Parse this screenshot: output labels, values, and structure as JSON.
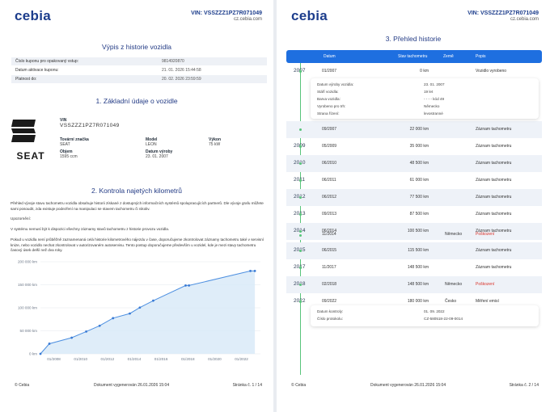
{
  "header": {
    "logo": "cebia",
    "vin_line": "VIN: VSSZZZ1PZ7R071049",
    "url": "cz.cebia.com"
  },
  "page1": {
    "title": "Výpis z historie vozidla",
    "coupon": [
      {
        "label": "Číslo kuponu pro opakovaný vstup:",
        "value": "9814920870"
      },
      {
        "label": "Datum aktivace kuponu:",
        "value": "21. 01. 2026 15:44:58"
      },
      {
        "label": "Platnost do:",
        "value": "20. 02. 2026 23:59:59"
      }
    ],
    "section1_title": "1. Základní údaje o vozidle",
    "brand_word": "SEAT",
    "vin_label": "VIN",
    "vin_value": "VSSZZZ1PZ7R071049",
    "specs": {
      "make_label": "Tovární značka",
      "make_value": "SEAT",
      "model_label": "Model",
      "model_value": "LEON",
      "power_label": "Výkon",
      "power_value": "75 kW",
      "volume_label": "Objem",
      "volume_value": "1595 ccm",
      "date_label": "Datum výroby",
      "date_value": "23. 01. 2007"
    },
    "section2_title": "2. Kontrola najetých kilometrů",
    "para1": "Přehled vývoje stavu tachometru vozidla obsahuje historii získané z dostupných informačních systémů spolupracujících partnerů. Dle vývoje grafu můžete sami posoudit, zda existuje podezření na manipulaci se stavem tachometru či nikoliv.",
    "para2": "Upozornění:",
    "para3": "V systému nemusí být k dispozici všechny záznamy stavů tachometru z historie provozu vozidla.",
    "para4": "Pokud u vozidla není průběžně zaznamenaná celá historie kilometrového nájezdu v čase, doporučujeme zkontrolovat záznamy tachometru také v servisní knize, nebo vozidlo nechat zkontrolovat v autorizovaném autoservisu. Tento postup doporučujeme především u vozidel, kde je mezi stavy tachometru časový úsek delší než dva roky.",
    "footer": {
      "left": "© Cebia",
      "center": "Dokument vygenerován 26.01.2026 15:04",
      "right": "Stránka č. 1 / 14"
    }
  },
  "chart_data": {
    "type": "area",
    "title": "",
    "xlabel": "",
    "ylabel": "",
    "y_ticks": [
      "200 000 km",
      "150 000 km",
      "100 000 km",
      "50 000 km",
      "0 km"
    ],
    "x_ticks": [
      "01/2008",
      "01/2010",
      "01/2012",
      "01/2014",
      "01/2016",
      "01/2018",
      "01/2020",
      "01/2022"
    ],
    "ylim": [
      0,
      200000
    ],
    "xlim": [
      "2007-01",
      "2023-06"
    ],
    "series": [
      {
        "points": [
          [
            "2007-01",
            0
          ],
          [
            "2007-09",
            22000
          ],
          [
            "2009-05",
            35000
          ],
          [
            "2010-06",
            48500
          ],
          [
            "2011-06",
            61000
          ],
          [
            "2012-06",
            77500
          ],
          [
            "2013-09",
            87500
          ],
          [
            "2014-06",
            100500
          ],
          [
            "2015-06",
            115500
          ],
          [
            "2017-11",
            148500
          ],
          [
            "2018-02",
            148500
          ],
          [
            "2022-09",
            180000
          ],
          [
            "2023-01",
            180000
          ]
        ]
      }
    ],
    "colors": {
      "line": "#4d8fe0",
      "fill": "#d7e8f8",
      "point": "#3a7bd5"
    }
  },
  "page2": {
    "title": "3. Přehled historie",
    "columns": [
      "Datum",
      "Stav tachometru",
      "Země",
      "Popis"
    ],
    "rows": [
      {
        "year": "2007",
        "date": "01/2007",
        "km": "0 km",
        "country": "",
        "desc": "Vozidlo vyrobeno"
      },
      {
        "year": "",
        "date": "09/2007",
        "km": "22 000 km",
        "country": "",
        "desc": "Záznam tachometru"
      },
      {
        "year": "2009",
        "date": "05/2009",
        "km": "35 000 km",
        "country": "",
        "desc": "Záznam tachometru"
      },
      {
        "year": "2010",
        "date": "06/2010",
        "km": "48 500 km",
        "country": "",
        "desc": "Záznam tachometru"
      },
      {
        "year": "2011",
        "date": "06/2011",
        "km": "61 000 km",
        "country": "",
        "desc": "Záznam tachometru"
      },
      {
        "year": "2012",
        "date": "06/2012",
        "km": "77 500 km",
        "country": "",
        "desc": "Záznam tachometru"
      },
      {
        "year": "2013",
        "date": "09/2013",
        "km": "87 500 km",
        "country": "",
        "desc": "Záznam tachometru"
      },
      {
        "year": "2014",
        "date": "06/2014",
        "km": "100 500 km",
        "country": "",
        "desc": "Záznam tachometru"
      },
      {
        "year": "",
        "date": "11/2014",
        "km": "",
        "country": "Německo",
        "desc": "Poškození"
      },
      {
        "year": "2015",
        "date": "06/2015",
        "km": "115 500 km",
        "country": "",
        "desc": "Záznam tachometru"
      },
      {
        "year": "2017",
        "date": "11/2017",
        "km": "148 500 km",
        "country": "",
        "desc": "Záznam tachometru"
      },
      {
        "year": "2018",
        "date": "02/2018",
        "km": "148 500 km",
        "country": "Německo",
        "desc": "Poškození"
      },
      {
        "year": "2022",
        "date": "09/2022",
        "km": "180 000 km",
        "country": "Česko",
        "desc": "Měření emisí"
      }
    ],
    "detail1": [
      {
        "label": "Datum výroby vozidla:",
        "value": "23. 01. 2007"
      },
      {
        "label": "Stáří vozidla:",
        "value": "19 let"
      },
      {
        "label": "Barva vozidla:",
        "value": "- - - - kód 49"
      },
      {
        "label": "Vyrobeno pro trh:",
        "value": "Německo"
      },
      {
        "label": "Strana řízení:",
        "value": "levostranné"
      }
    ],
    "detail2": [
      {
        "label": "Datum kontroly:",
        "value": "01. 09. 2022"
      },
      {
        "label": "Číslo protokolu:",
        "value": "CZ-580518-22-09-0014"
      }
    ],
    "footer": {
      "left": "© Cebia",
      "center": "Dokument vygenerován 26.01.2026 15:04",
      "right": "Stránka č. 2 / 14"
    }
  }
}
